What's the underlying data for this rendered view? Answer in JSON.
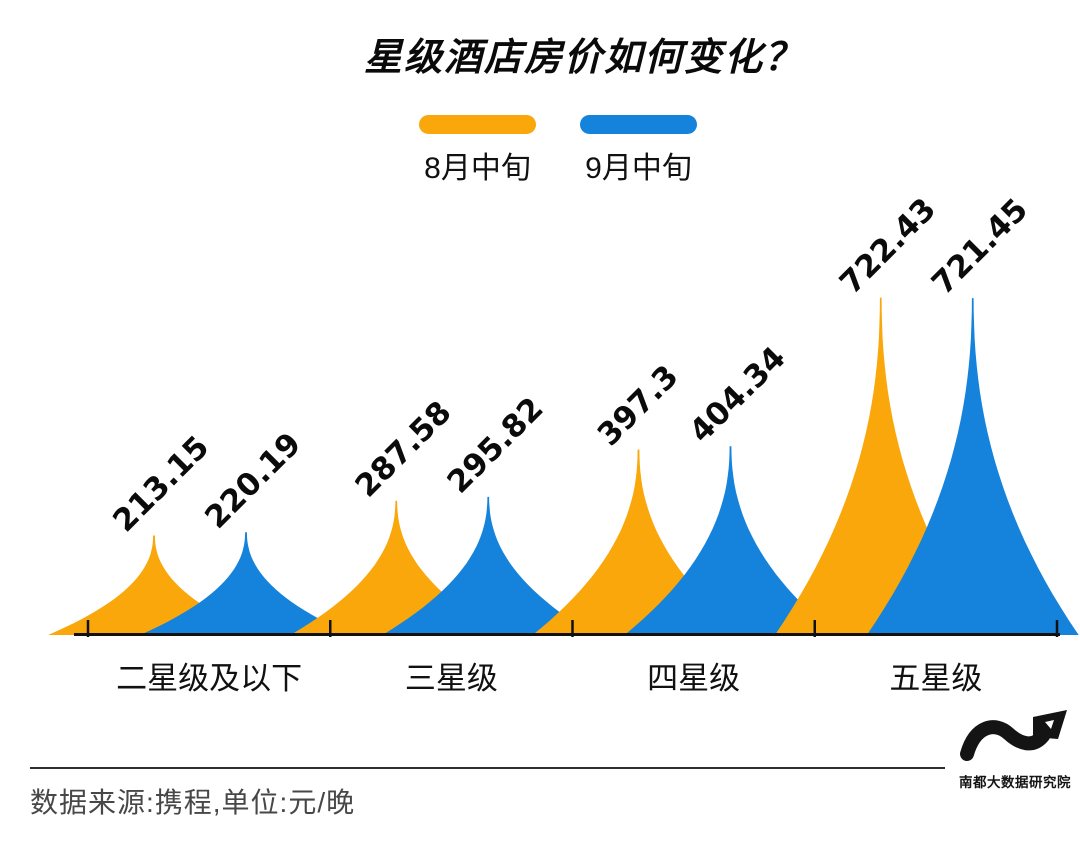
{
  "title": "星级酒店房价如何变化？",
  "legend": {
    "items": [
      {
        "label": "8月中旬",
        "color": "#FAA70B"
      },
      {
        "label": "9月中旬",
        "color": "#1583DB"
      }
    ]
  },
  "chart_data": {
    "type": "area",
    "subtype": "spike-peaks",
    "title": "星级酒店房价如何变化？",
    "categories": [
      "二星级及以下",
      "三星级",
      "四星级",
      "五星级"
    ],
    "series": [
      {
        "name": "8月中旬",
        "color": "#FAA70B",
        "values": [
          213.15,
          287.58,
          397.3,
          722.43
        ]
      },
      {
        "name": "9月中旬",
        "color": "#1583DB",
        "values": [
          220.19,
          295.82,
          404.34,
          721.45
        ]
      }
    ],
    "value_labels": [
      [
        "213.15",
        "287.58",
        "397.3",
        "722.43"
      ],
      [
        "220.19",
        "295.82",
        "404.34",
        "721.45"
      ]
    ],
    "unit": "元/晚",
    "ylim": [
      0,
      760
    ],
    "grid": false,
    "legend_position": "top",
    "value_label_rotation": -45,
    "axis_color": "#111111"
  },
  "footer": {
    "source_text": "数据来源:携程,单位:元/晚",
    "logo_text": "南都大数据研究院"
  }
}
